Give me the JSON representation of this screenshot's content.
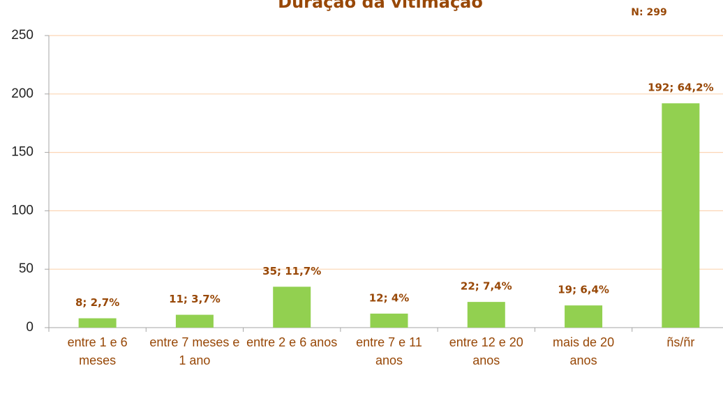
{
  "chart_data": {
    "type": "bar",
    "title": "Duração da vitimação",
    "annotation": "N: 299",
    "categories": [
      "entre 1 e 6 meses",
      "entre 7 meses e 1 ano",
      "entre 2 e 6 anos",
      "entre 7 e 11 anos",
      "entre 12 e 20 anos",
      "mais de 20 anos",
      "ñs/ñr"
    ],
    "values": [
      8,
      11,
      35,
      12,
      22,
      19,
      192
    ],
    "value_labels": [
      "8; 2,7%",
      "11; 3,7%",
      "35; 11,7%",
      "12; 4%",
      "22; 7,4%",
      "19; 6,4%",
      "192; 64,2%"
    ],
    "color": "#92d050",
    "ylim": [
      0,
      250
    ],
    "yticks": [
      0,
      50,
      100,
      150,
      200,
      250
    ],
    "grid": true
  }
}
